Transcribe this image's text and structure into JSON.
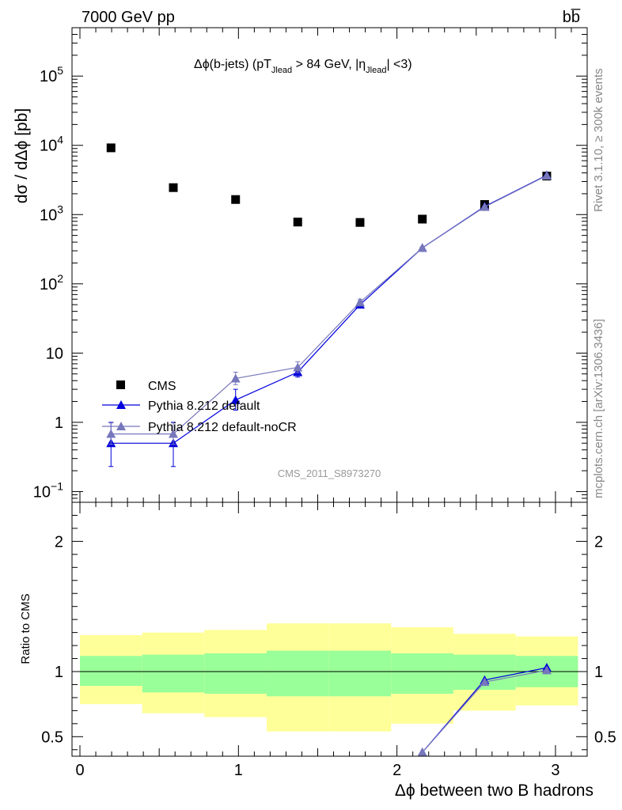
{
  "header": {
    "left_title": "7000 GeV pp",
    "right_title": "bb̅"
  },
  "side_labels": {
    "rivet": "Rivet 3.1.10, ≥ 300k events",
    "mcplots": "mcplots.cern.ch [arXiv:1306.3436]"
  },
  "chart_data": [
    {
      "type": "scatter",
      "title": "Δϕ(b-jets) (pT_Jlead > 84 GeV, |η_Jlead| <3)",
      "title_parts": {
        "a": "Δϕ(b-jets) (pT",
        "sub1": "Jlead",
        "b": " >  84 GeV, |η",
        "sub2": "Jlead",
        "c": "| <3)"
      },
      "xlabel": "Δϕ between two B hadrons",
      "ylabel": "dσ / dΔϕ [pb]",
      "yscale": "log",
      "xlim": [
        -0.05,
        3.2
      ],
      "ylim": [
        0.07,
        500000
      ],
      "y_tick_labels": [
        {
          "v": 0.1,
          "base": "10",
          "exp": "−1"
        },
        {
          "v": 1,
          "base": "1",
          "exp": ""
        },
        {
          "v": 10,
          "base": "10",
          "exp": ""
        },
        {
          "v": 100,
          "base": "10",
          "exp": "2"
        },
        {
          "v": 1000,
          "base": "10",
          "exp": "3"
        },
        {
          "v": 10000,
          "base": "10",
          "exp": "4"
        },
        {
          "v": 100000,
          "base": "10",
          "exp": "5"
        }
      ],
      "annotation": "CMS_2011_S8973270",
      "legend_position": "bottom-left",
      "series": [
        {
          "name": "CMS",
          "marker": "square",
          "color": "#000000",
          "x": [
            0.196,
            0.589,
            0.982,
            1.374,
            1.767,
            2.16,
            2.553,
            2.945
          ],
          "y": [
            9200,
            2450,
            1650,
            780,
            770,
            860,
            1400,
            3600
          ]
        },
        {
          "name": "Pythia 8.212 default",
          "marker": "triangle",
          "color": "#0000dd",
          "x": [
            0.196,
            0.589,
            0.982,
            1.374,
            1.767,
            2.16,
            2.553,
            2.945
          ],
          "y": [
            0.5,
            0.5,
            2.1,
            5.3,
            50,
            330,
            1310,
            3700
          ],
          "err_lo": [
            0.27,
            0.27,
            0.6,
            0.8,
            5,
            10,
            20,
            40
          ],
          "err_hi": [
            0.5,
            0.5,
            0.9,
            1.0,
            6,
            12,
            25,
            45
          ]
        },
        {
          "name": "Pythia 8.212 default-noCR",
          "marker": "triangle",
          "color": "#7777bb",
          "x": [
            0.196,
            0.589,
            0.982,
            1.374,
            1.767,
            2.16,
            2.553,
            2.945
          ],
          "y": [
            0.68,
            0.68,
            4.3,
            6.2,
            54,
            330,
            1290,
            3650
          ],
          "err_lo": [
            0.2,
            0.2,
            0.8,
            1.0,
            5,
            10,
            20,
            40
          ],
          "err_hi": [
            0.3,
            0.3,
            1.0,
            1.3,
            6,
            12,
            25,
            45
          ]
        }
      ]
    },
    {
      "type": "line",
      "ylabel": "Ratio to CMS",
      "xlim": [
        -0.05,
        3.2
      ],
      "ylim": [
        0.35,
        2.3
      ],
      "x_ticks": [
        0,
        1,
        2,
        3
      ],
      "y_ticks": [
        0.5,
        1,
        2
      ],
      "bands": {
        "edges": [
          0,
          0.393,
          0.785,
          1.178,
          1.571,
          1.963,
          2.356,
          2.749,
          3.142
        ],
        "stat_lo": [
          0.89,
          0.84,
          0.83,
          0.81,
          0.81,
          0.83,
          0.86,
          0.88
        ],
        "stat_hi": [
          1.12,
          1.13,
          1.14,
          1.16,
          1.16,
          1.14,
          1.13,
          1.12
        ],
        "total_lo": [
          0.75,
          0.68,
          0.65,
          0.54,
          0.54,
          0.6,
          0.7,
          0.74
        ],
        "total_hi": [
          1.28,
          1.3,
          1.32,
          1.37,
          1.37,
          1.34,
          1.29,
          1.27
        ],
        "stat_color": "#99ff99",
        "total_color": "#ffff99"
      },
      "series": [
        {
          "name": "Pythia 8.212 default",
          "color": "#0000dd",
          "x": [
            2.16,
            2.553,
            2.945
          ],
          "y": [
            0.38,
            0.935,
            1.03
          ]
        },
        {
          "name": "Pythia 8.212 default-noCR",
          "color": "#7777bb",
          "x": [
            2.16,
            2.553,
            2.945
          ],
          "y": [
            0.38,
            0.92,
            1.01
          ]
        }
      ]
    }
  ]
}
